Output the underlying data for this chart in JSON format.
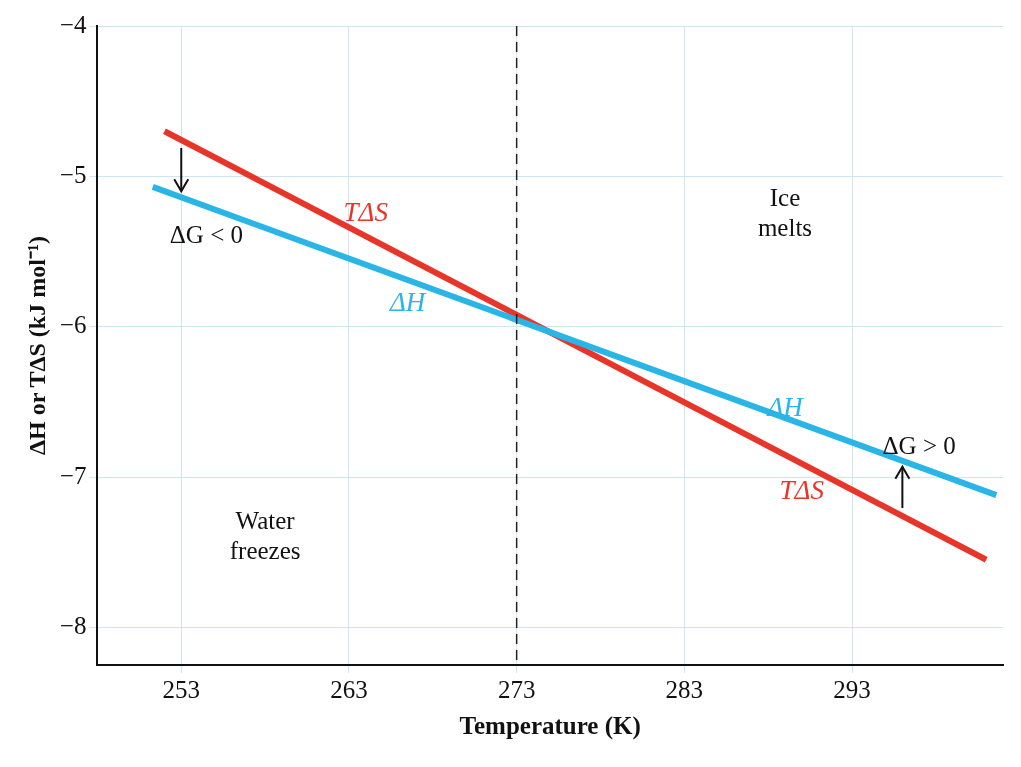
{
  "chart_data": {
    "type": "line",
    "xlabel": "Temperature (K)",
    "ylabel": "ΔH or TΔS (kJ mol⁻¹)",
    "xlim": [
      248,
      302
    ],
    "xticks": [
      253,
      263,
      273,
      283,
      293
    ],
    "ylim": [
      -8.25,
      -4
    ],
    "yticks": [
      -8,
      -7,
      -6,
      -5,
      -4
    ],
    "grid": true,
    "legend": false,
    "marker": "none",
    "line_style": "solid",
    "series": [
      {
        "name": "ΔH",
        "color": "#29b6e6",
        "x": [
          251.3,
          301.6
        ],
        "values": [
          -5.07,
          -7.12
        ]
      },
      {
        "name": "TΔS",
        "color": "#e8352a",
        "x": [
          252,
          301
        ],
        "values": [
          -4.7,
          -7.55
        ]
      }
    ],
    "ref_lines": [
      {
        "axis": "x",
        "value": 273,
        "label": null,
        "color": "#222222",
        "line_style": "dashed"
      }
    ],
    "annotations": [
      "ΔG < 0",
      "ΔG > 0",
      "Ice melts",
      "Water freezes"
    ]
  }
}
